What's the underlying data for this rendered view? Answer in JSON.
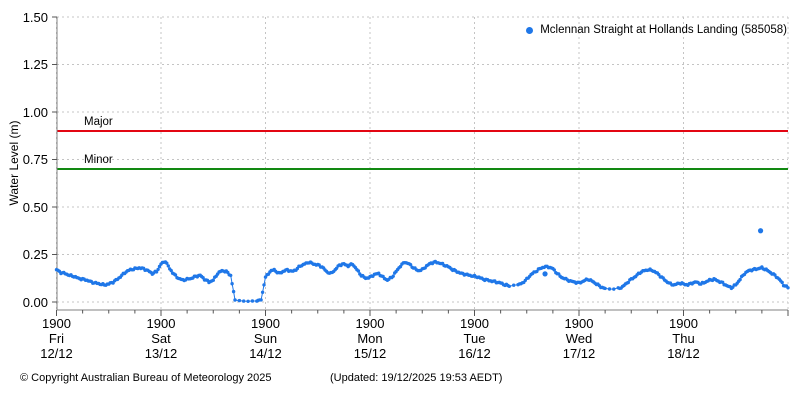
{
  "chart_data": {
    "type": "scatter",
    "title": "",
    "ylabel": "Water Level (m)",
    "ylim": [
      -0.04,
      1.5
    ],
    "grid": true,
    "y_ticks": [
      0.0,
      0.25,
      0.5,
      0.75,
      1.0,
      1.25,
      1.5
    ],
    "y_tick_labels": [
      "0.00",
      "0.25",
      "0.50",
      "0.75",
      "1.00",
      "1.25",
      "1.50"
    ],
    "x_axis": {
      "tick_time_label": "1900",
      "days": [
        {
          "day": "Fri",
          "date": "12/12"
        },
        {
          "day": "Sat",
          "date": "13/12"
        },
        {
          "day": "Sun",
          "date": "14/12"
        },
        {
          "day": "Mon",
          "date": "15/12"
        },
        {
          "day": "Tue",
          "date": "16/12"
        },
        {
          "day": "Wed",
          "date": "17/12"
        },
        {
          "day": "Thu",
          "date": "18/12"
        }
      ],
      "total_hours": 168,
      "major_tick_every_hours": 24,
      "minor_tick_every_hours": 6
    },
    "legend": {
      "position": "top-right",
      "series_label": "Mclennan Straight at Hollands Landing (585058)"
    },
    "thresholds": [
      {
        "label": "Major",
        "value": 0.9,
        "color": "#e30613"
      },
      {
        "label": "Minor",
        "value": 0.7,
        "color": "#128912"
      }
    ],
    "series": [
      {
        "name": "Mclennan Straight at Hollands Landing (585058)",
        "color": "#1f77e8",
        "x_unit": "hours since Fri 12/12 19:00",
        "x_step_hours": 1,
        "values": [
          0.17,
          0.155,
          0.15,
          0.14,
          0.135,
          0.125,
          0.12,
          0.115,
          0.105,
          0.1,
          0.095,
          0.09,
          0.095,
          0.105,
          0.12,
          0.14,
          0.16,
          0.17,
          0.175,
          0.18,
          0.175,
          0.165,
          0.15,
          0.16,
          0.2,
          0.215,
          0.175,
          0.145,
          0.125,
          0.115,
          0.12,
          0.125,
          0.135,
          0.14,
          0.12,
          0.105,
          0.115,
          0.15,
          0.165,
          0.16,
          0.14,
          0.01,
          0.006,
          0.005,
          0.004,
          0.005,
          0.006,
          0.012,
          0.13,
          0.16,
          0.17,
          0.15,
          0.16,
          0.17,
          0.16,
          0.17,
          0.19,
          0.2,
          0.21,
          0.2,
          0.195,
          0.185,
          0.16,
          0.15,
          0.17,
          0.195,
          0.2,
          0.19,
          0.2,
          0.17,
          0.14,
          0.125,
          0.13,
          0.145,
          0.15,
          0.13,
          0.115,
          0.13,
          0.16,
          0.19,
          0.21,
          0.2,
          0.18,
          0.165,
          0.17,
          0.19,
          0.205,
          0.21,
          0.205,
          0.195,
          0.185,
          0.17,
          0.16,
          0.15,
          0.145,
          0.14,
          0.135,
          0.13,
          0.12,
          0.115,
          0.11,
          0.105,
          0.1,
          0.09,
          0.085,
          0.085,
          0.09,
          0.1,
          0.12,
          0.145,
          0.16,
          0.175,
          0.185,
          0.185,
          0.175,
          0.15,
          0.13,
          0.12,
          0.11,
          0.105,
          0.1,
          0.11,
          0.12,
          0.11,
          0.095,
          0.08,
          0.07,
          0.068,
          0.068,
          0.07,
          0.08,
          0.1,
          0.12,
          0.135,
          0.155,
          0.165,
          0.17,
          0.165,
          0.15,
          0.13,
          0.11,
          0.095,
          0.09,
          0.1,
          0.095,
          0.09,
          0.1,
          0.105,
          0.095,
          0.105,
          0.115,
          0.12,
          0.11,
          0.1,
          0.085,
          0.075,
          0.09,
          0.12,
          0.15,
          0.165,
          0.17,
          0.175,
          0.18,
          0.17,
          0.155,
          0.14,
          0.12,
          0.09,
          0.075
        ]
      }
    ],
    "outliers": [
      {
        "x_hours": 161.7,
        "value": 0.375
      },
      {
        "x_hours": 112.2,
        "value": 0.148
      }
    ]
  },
  "footer": {
    "copyright": "© Copyright Australian Bureau of Meteorology 2025",
    "updated": "(Updated: 19/12/2025 19:53 AEDT)"
  }
}
